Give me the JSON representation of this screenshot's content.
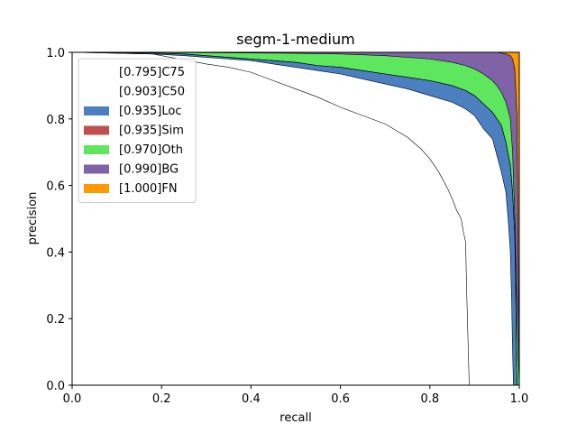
{
  "chart_data": {
    "type": "area",
    "title": "segm-1-medium",
    "xlabel": "recall",
    "ylabel": "precision",
    "xlim": [
      0,
      1
    ],
    "ylim": [
      0,
      1
    ],
    "xticks": [
      "0.0",
      "0.2",
      "0.4",
      "0.6",
      "0.8",
      "1.0"
    ],
    "yticks": [
      "0.0",
      "0.2",
      "0.4",
      "0.6",
      "0.8",
      "1.0"
    ],
    "grid": false,
    "legend_position": "top-left",
    "series": [
      {
        "name": "[0.795]C75",
        "color": "#ffffff",
        "x": [
          0.0,
          0.18,
          0.22,
          0.26,
          0.3,
          0.35,
          0.4,
          0.45,
          0.5,
          0.55,
          0.6,
          0.65,
          0.7,
          0.75,
          0.78,
          0.8,
          0.82,
          0.84,
          0.85,
          0.86,
          0.87,
          0.875,
          0.88,
          0.882,
          0.885,
          0.887,
          0.888
        ],
        "y": [
          1.0,
          0.995,
          0.985,
          0.975,
          0.965,
          0.955,
          0.94,
          0.915,
          0.89,
          0.865,
          0.835,
          0.81,
          0.785,
          0.745,
          0.71,
          0.68,
          0.64,
          0.59,
          0.56,
          0.525,
          0.5,
          0.46,
          0.43,
          0.3,
          0.15,
          0.05,
          0.0
        ]
      },
      {
        "name": "[0.903]C50",
        "color": "#ffffff",
        "x": [
          0.0,
          0.18,
          0.25,
          0.3,
          0.35,
          0.4,
          0.45,
          0.5,
          0.55,
          0.6,
          0.65,
          0.7,
          0.75,
          0.8,
          0.85,
          0.88,
          0.9,
          0.92,
          0.94,
          0.95,
          0.96,
          0.97,
          0.975,
          0.98,
          0.983,
          0.985,
          0.987
        ],
        "y": [
          1.0,
          0.995,
          0.99,
          0.985,
          0.98,
          0.975,
          0.965,
          0.955,
          0.945,
          0.935,
          0.92,
          0.905,
          0.89,
          0.87,
          0.85,
          0.83,
          0.81,
          0.77,
          0.74,
          0.69,
          0.64,
          0.58,
          0.5,
          0.4,
          0.25,
          0.1,
          0.0
        ]
      },
      {
        "name": "[0.935]Loc",
        "color": "#4c7fc0",
        "x": [
          0.0,
          0.18,
          0.25,
          0.3,
          0.35,
          0.4,
          0.45,
          0.5,
          0.55,
          0.6,
          0.65,
          0.7,
          0.75,
          0.8,
          0.85,
          0.88,
          0.9,
          0.92,
          0.94,
          0.96,
          0.97,
          0.98,
          0.985,
          0.99,
          0.992,
          0.993,
          0.995
        ],
        "y": [
          1.0,
          0.998,
          0.995,
          0.99,
          0.985,
          0.98,
          0.975,
          0.97,
          0.96,
          0.955,
          0.945,
          0.935,
          0.925,
          0.915,
          0.9,
          0.885,
          0.87,
          0.845,
          0.82,
          0.78,
          0.73,
          0.66,
          0.58,
          0.45,
          0.3,
          0.15,
          0.0
        ]
      },
      {
        "name": "[0.935]Sim",
        "color": "#c0504d",
        "x": [
          0.0,
          0.18,
          0.25,
          0.3,
          0.35,
          0.4,
          0.45,
          0.5,
          0.55,
          0.6,
          0.65,
          0.7,
          0.75,
          0.8,
          0.85,
          0.88,
          0.9,
          0.92,
          0.94,
          0.96,
          0.97,
          0.98,
          0.985,
          0.99,
          0.992,
          0.993,
          0.995
        ],
        "y": [
          1.0,
          0.998,
          0.995,
          0.99,
          0.985,
          0.98,
          0.975,
          0.97,
          0.96,
          0.955,
          0.945,
          0.935,
          0.925,
          0.915,
          0.9,
          0.885,
          0.87,
          0.845,
          0.82,
          0.78,
          0.73,
          0.66,
          0.58,
          0.45,
          0.3,
          0.15,
          0.0
        ]
      },
      {
        "name": "[0.970]Oth",
        "color": "#5ee65e",
        "x": [
          0.0,
          0.25,
          0.4,
          0.5,
          0.6,
          0.7,
          0.8,
          0.85,
          0.88,
          0.9,
          0.92,
          0.94,
          0.95,
          0.96,
          0.97,
          0.98,
          0.985,
          0.99,
          0.995,
          1.0
        ],
        "y": [
          1.0,
          0.999,
          0.998,
          0.997,
          0.995,
          0.99,
          0.98,
          0.97,
          0.96,
          0.95,
          0.935,
          0.915,
          0.9,
          0.88,
          0.85,
          0.8,
          0.7,
          0.5,
          0.2,
          0.0
        ]
      },
      {
        "name": "[0.990]BG",
        "color": "#7f62a8",
        "x": [
          0.0,
          0.5,
          0.8,
          0.9,
          0.95,
          0.97,
          0.98,
          0.985,
          0.99,
          0.995,
          1.0
        ],
        "y": [
          1.0,
          1.0,
          1.0,
          1.0,
          1.0,
          0.995,
          0.99,
          0.98,
          0.95,
          0.8,
          0.0
        ]
      },
      {
        "name": "[1.000]FN",
        "color": "#ff9900",
        "x": [
          0.0,
          1.0
        ],
        "y": [
          1.0,
          1.0
        ]
      }
    ]
  }
}
